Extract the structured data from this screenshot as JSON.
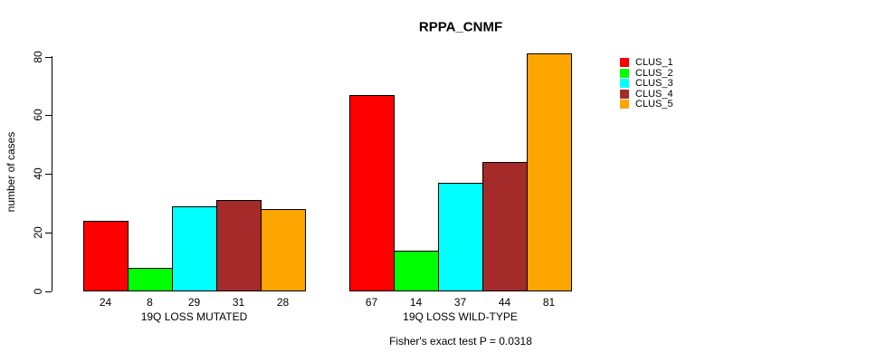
{
  "title": "RPPA_CNMF",
  "y_axis": {
    "label": "number of cases",
    "ticks": [
      0,
      20,
      40,
      60,
      80
    ]
  },
  "footnote": "Fisher's exact test P = 0.0318",
  "legend": {
    "entries": [
      {
        "label": "CLUS_1",
        "color": "#FF0000"
      },
      {
        "label": "CLUS_2",
        "color": "#00FF00"
      },
      {
        "label": "CLUS_3",
        "color": "#00FFFF"
      },
      {
        "label": "CLUS_4",
        "color": "#A52A2A"
      },
      {
        "label": "CLUS_5",
        "color": "#FFA500"
      }
    ]
  },
  "chart_data": {
    "type": "bar",
    "title": "RPPA_CNMF",
    "xlabel": "",
    "ylabel": "number of cases",
    "ylim": [
      0,
      80
    ],
    "yticks": [
      0,
      20,
      40,
      60,
      80
    ],
    "grid": false,
    "legend_position": "right",
    "bar_value_labels": true,
    "annotation": "Fisher's exact test P = 0.0318",
    "categories": [
      "19Q LOSS MUTATED",
      "19Q LOSS WILD-TYPE"
    ],
    "series": [
      {
        "name": "CLUS_1",
        "color": "#FF0000",
        "values": [
          24,
          67
        ]
      },
      {
        "name": "CLUS_2",
        "color": "#00FF00",
        "values": [
          8,
          14
        ]
      },
      {
        "name": "CLUS_3",
        "color": "#00FFFF",
        "values": [
          29,
          37
        ]
      },
      {
        "name": "CLUS_4",
        "color": "#A52A2A",
        "values": [
          31,
          44
        ]
      },
      {
        "name": "CLUS_5",
        "color": "#FFA500",
        "values": [
          28,
          81
        ]
      }
    ]
  }
}
